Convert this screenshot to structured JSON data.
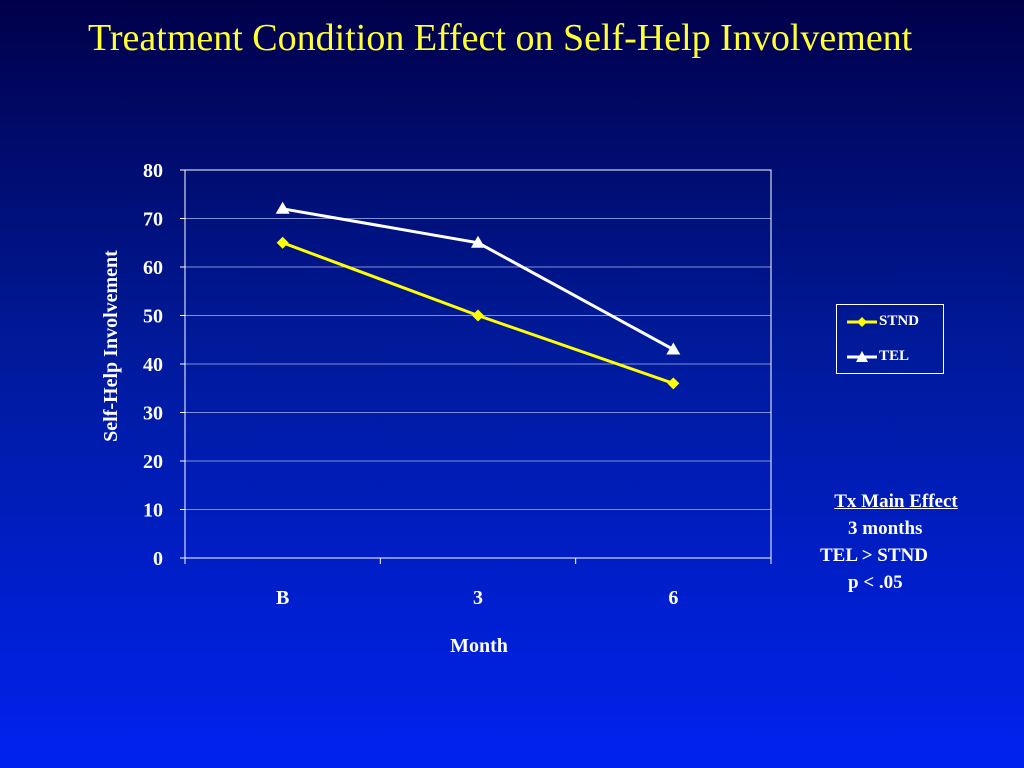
{
  "slide": {
    "title": "Treatment Condition Effect on Self-Help Involvement"
  },
  "colors": {
    "title": "#ffff33",
    "stnd": "#ffff00",
    "tel": "#ffffff",
    "grid": "#7f8fd8"
  },
  "legend": {
    "stnd": "STND",
    "tel": "TEL"
  },
  "annotation": {
    "heading": "Tx Main Effect",
    "line1": "3 months",
    "line2": "TEL > STND",
    "line3": "p < .05"
  },
  "chart_data": {
    "type": "line",
    "categories": [
      "B",
      "3",
      "6"
    ],
    "series": [
      {
        "name": "STND",
        "values": [
          65,
          50,
          36
        ],
        "marker": "diamond",
        "color": "#ffff00"
      },
      {
        "name": "TEL",
        "values": [
          72,
          65,
          43
        ],
        "marker": "triangle",
        "color": "#ffffff"
      }
    ],
    "xlabel": "Month",
    "ylabel": "Self-Help Involvement",
    "ylim": [
      0,
      80
    ],
    "yticks": [
      0,
      10,
      20,
      30,
      40,
      50,
      60,
      70,
      80
    ],
    "grid": true,
    "legend_position": "right"
  }
}
